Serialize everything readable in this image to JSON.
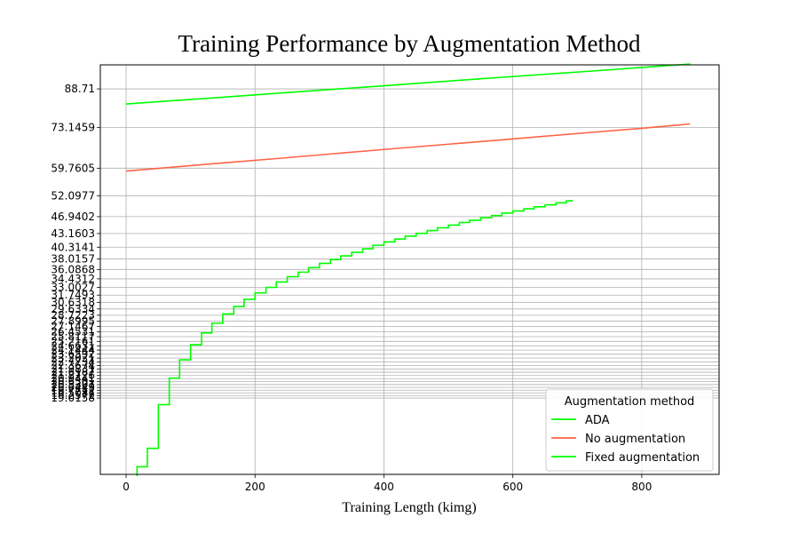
{
  "chart_data": {
    "type": "line",
    "title": "Training Performance by Augmentation Method",
    "xlabel": "Training Length (kimg)",
    "ylabel": "",
    "xlim": [
      -40,
      920
    ],
    "x_ticks": [
      0,
      200,
      400,
      600,
      800
    ],
    "y_scale": "log",
    "ylim": [
      13,
      100
    ],
    "y_tick_labels": [
      {
        "value": 88.71,
        "label": "88.71"
      },
      {
        "value": 73.1459,
        "label": "73.1459"
      },
      {
        "value": 59.7605,
        "label": "59.7605"
      },
      {
        "value": 52.0977,
        "label": "52.0977"
      },
      {
        "value": 46.9402,
        "label": "46.9402"
      },
      {
        "value": 43.1603,
        "label": "43.1603"
      },
      {
        "value": 40.3141,
        "label": "40.3141"
      },
      {
        "value": 38.0157,
        "label": "38.0157"
      },
      {
        "value": 36.0868,
        "label": "36.0868"
      },
      {
        "value": 34.4312,
        "label": "34.4312"
      },
      {
        "value": 33.0027,
        "label": "33.0027"
      },
      {
        "value": 31.7493,
        "label": "31.7493"
      },
      {
        "value": 30.6318,
        "label": "30.6318"
      },
      {
        "value": 29.6334,
        "label": "29.6334"
      },
      {
        "value": 28.7223,
        "label": "28.7223"
      },
      {
        "value": 27.8995,
        "label": "27.8995"
      },
      {
        "value": 27.1467,
        "label": "27.1467"
      },
      {
        "value": 26.4531,
        "label": "26.4531"
      },
      {
        "value": 25.8117,
        "label": "25.8117"
      },
      {
        "value": 25.2161,
        "label": "25.2161"
      },
      {
        "value": 24.6631,
        "label": "24.6631"
      },
      {
        "value": 24.1444,
        "label": "24.1444"
      },
      {
        "value": 23.6592,
        "label": "23.6592"
      },
      {
        "value": 23.2021,
        "label": "23.2021"
      },
      {
        "value": 22.7734,
        "label": "22.7734"
      },
      {
        "value": 22.3674,
        "label": "22.3674"
      },
      {
        "value": 21.9831,
        "label": "21.9831"
      },
      {
        "value": 21.6187,
        "label": "21.6187"
      },
      {
        "value": 21.2726,
        "label": "21.2726"
      },
      {
        "value": 20.9441,
        "label": "20.9441"
      },
      {
        "value": 20.6301,
        "label": "20.6301"
      },
      {
        "value": 20.3307,
        "label": "20.3307"
      },
      {
        "value": 20.0449,
        "label": "20.0449"
      },
      {
        "value": 19.7712,
        "label": "19.7712"
      },
      {
        "value": 19.5087,
        "label": "19.5087"
      },
      {
        "value": 19.2572,
        "label": "19.2572"
      },
      {
        "value": 19.0158,
        "label": "19.0158"
      }
    ],
    "series": [
      {
        "name": "ADA",
        "color": "#00ff00",
        "x": [
          0,
          80,
          160,
          240,
          320,
          400,
          480,
          560,
          640,
          720,
          800,
          875
        ],
        "y": [
          82.3,
          83.8,
          85.3,
          86.9,
          88.5,
          90.1,
          91.8,
          93.5,
          95.2,
          96.9,
          98.7,
          100.4
        ]
      },
      {
        "name": "No augmentation",
        "color": "#ff6347",
        "x": [
          0,
          80,
          160,
          240,
          320,
          400,
          480,
          560,
          640,
          720,
          800,
          875
        ],
        "y": [
          58.9,
          60.2,
          61.5,
          62.8,
          64.2,
          65.6,
          67.0,
          68.4,
          69.9,
          71.4,
          72.9,
          74.5
        ]
      },
      {
        "name": "Fixed augmentation",
        "color": "#00ff00",
        "step": true,
        "x": [
          17,
          33,
          50,
          67,
          83,
          100,
          117,
          133,
          150,
          167,
          183,
          200,
          217,
          233,
          250,
          267,
          283,
          300,
          317,
          333,
          350,
          367,
          383,
          400,
          417,
          433,
          450,
          467,
          483,
          500,
          517,
          533,
          550,
          567,
          583,
          600,
          617,
          633,
          650,
          667,
          683,
          692
        ],
        "y": [
          13.5,
          14.8,
          18.4,
          21.0,
          23.0,
          24.8,
          26.3,
          27.6,
          28.9,
          30.0,
          31.1,
          32.1,
          33.0,
          33.9,
          34.8,
          35.6,
          36.4,
          37.2,
          37.9,
          38.6,
          39.3,
          40.0,
          40.7,
          41.4,
          42.0,
          42.6,
          43.2,
          43.8,
          44.4,
          45.0,
          45.6,
          46.1,
          46.7,
          47.2,
          47.8,
          48.3,
          48.8,
          49.3,
          49.8,
          50.3,
          50.8,
          51.0
        ]
      }
    ],
    "grid": true,
    "legend": {
      "title": "Augmentation method",
      "placement": "lower-right"
    }
  }
}
